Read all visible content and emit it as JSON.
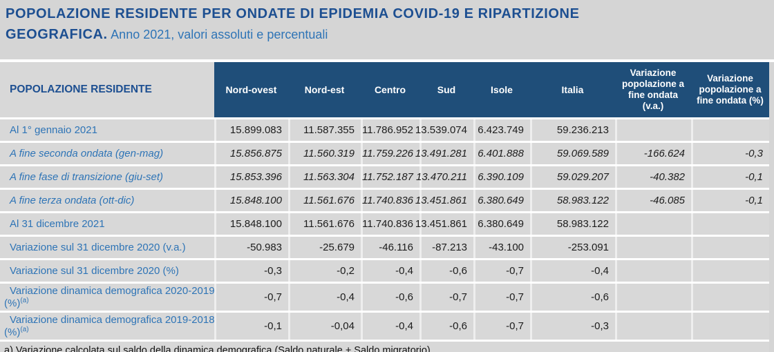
{
  "colors": {
    "header_bg": "#1f4e79",
    "title_blue": "#1d4f91",
    "accent_blue": "#2e74b6",
    "page_bg": "#d5d5d5",
    "cell_bg": "#d8d8d8"
  },
  "title": {
    "line1": "POPOLAZIONE RESIDENTE PER ONDATE DI EPIDEMIA COVID-19 E RIPARTIZIONE",
    "line2_bold": "GEOGRAFICA.",
    "subtitle": "Anno 2021, valori assoluti e percentuali"
  },
  "table": {
    "row_header": "POPOLAZIONE RESIDENTE",
    "columns": [
      "Nord-ovest",
      "Nord-est",
      "Centro",
      "Sud",
      "Isole",
      "Italia",
      "Variazione popolazione a fine ondata (v.a.)",
      "Variazione popolazione a fine ondata (%)"
    ],
    "rows": [
      {
        "label": "Al 1° gennaio 2021",
        "italic": false,
        "tall": false,
        "values": [
          "15.899.083",
          "11.587.355",
          "11.786.952",
          "13.539.074",
          "6.423.749",
          "59.236.213",
          "",
          ""
        ]
      },
      {
        "label": "A fine seconda ondata (gen-mag)",
        "italic": true,
        "tall": false,
        "values": [
          "15.856.875",
          "11.560.319",
          "11.759.226",
          "13.491.281",
          "6.401.888",
          "59.069.589",
          "-166.624",
          "-0,3"
        ]
      },
      {
        "label": "A fine fase di transizione (giu-set)",
        "italic": true,
        "tall": false,
        "values": [
          "15.853.396",
          "11.563.304",
          "11.752.187",
          "13.470.211",
          "6.390.109",
          "59.029.207",
          "-40.382",
          "-0,1"
        ]
      },
      {
        "label": "A fine terza ondata (ott-dic)",
        "italic": true,
        "tall": false,
        "values": [
          "15.848.100",
          "11.561.676",
          "11.740.836",
          "13.451.861",
          "6.380.649",
          "58.983.122",
          "-46.085",
          "-0,1"
        ]
      },
      {
        "label": "Al 31 dicembre 2021",
        "italic": false,
        "tall": false,
        "values": [
          "15.848.100",
          "11.561.676",
          "11.740.836",
          "13.451.861",
          "6.380.649",
          "58.983.122",
          "",
          ""
        ]
      },
      {
        "label": "Variazione sul 31 dicembre 2020 (v.a.)",
        "italic": false,
        "tall": false,
        "values": [
          "-50.983",
          "-25.679",
          "-46.116",
          "-87.213",
          "-43.100",
          "-253.091",
          "",
          ""
        ]
      },
      {
        "label": "Variazione sul 31 dicembre 2020 (%)",
        "italic": false,
        "tall": false,
        "values": [
          "-0,3",
          "-0,2",
          "-0,4",
          "-0,6",
          "-0,7",
          "-0,4",
          "",
          ""
        ]
      },
      {
        "label": "Variazione dinamica demografica 2020-2019",
        "label2": "(%)",
        "sup": "(a)",
        "italic": false,
        "tall": true,
        "values": [
          "-0,7",
          "-0,4",
          "-0,6",
          "-0,7",
          "-0,7",
          "-0,6",
          "",
          ""
        ]
      },
      {
        "label": "Variazione dinamica demografica 2019-2018",
        "label2": "(%)",
        "sup": "(a)",
        "italic": false,
        "tall": true,
        "values": [
          "-0,1",
          "-0,04",
          "-0,4",
          "-0,6",
          "-0,7",
          "-0,3",
          "",
          ""
        ]
      }
    ],
    "footnote": "a) Variazione calcolata sul saldo della dinamica demografica (Saldo naturale + Saldo migratorio)."
  }
}
